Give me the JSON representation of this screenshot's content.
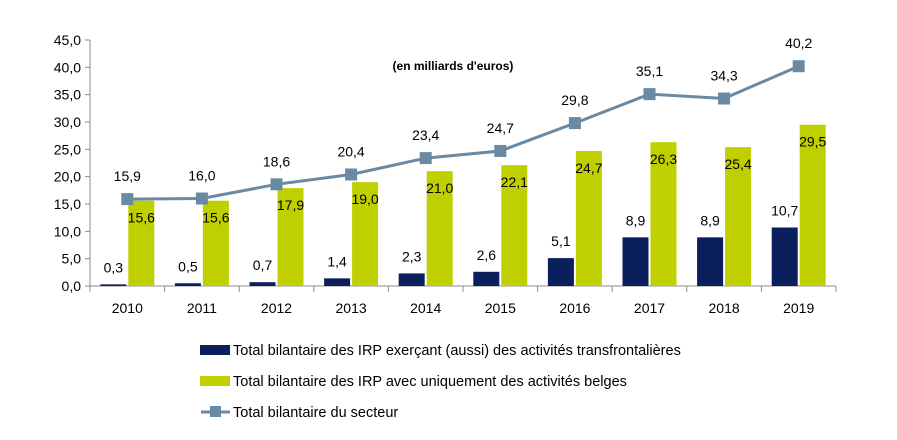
{
  "chart_data": {
    "type": "bar",
    "annotation": "(en milliards d'euros)",
    "categories": [
      "2010",
      "2011",
      "2012",
      "2013",
      "2014",
      "2015",
      "2016",
      "2017",
      "2018",
      "2019"
    ],
    "ylim": [
      0,
      45
    ],
    "yticks": [
      "0,0",
      "5,0",
      "10,0",
      "15,0",
      "20,0",
      "25,0",
      "30,0",
      "35,0",
      "40,0",
      "45,0"
    ],
    "grid": false,
    "legend_position": "bottom",
    "series": [
      {
        "name": "Total bilantaire des IRP exerçant (aussi) des activités transfrontalières",
        "kind": "bar",
        "color": "#0b1f5c",
        "values": [
          0.3,
          0.5,
          0.7,
          1.4,
          2.3,
          2.6,
          5.1,
          8.9,
          8.9,
          10.7
        ],
        "labels": [
          "0,3",
          "0,5",
          "0,7",
          "1,4",
          "2,3",
          "2,6",
          "5,1",
          "8,9",
          "8,9",
          "10,7"
        ]
      },
      {
        "name": "Total bilantaire des IRP avec uniquement des activités belges",
        "kind": "bar",
        "color": "#bfcf00",
        "values": [
          15.6,
          15.6,
          17.9,
          19.0,
          21.0,
          22.1,
          24.7,
          26.3,
          25.4,
          29.5
        ],
        "labels": [
          "15,6",
          "15,6",
          "17,9",
          "19,0",
          "21,0",
          "22,1",
          "24,7",
          "26,3",
          "25,4",
          "29,5"
        ]
      },
      {
        "name": "Total bilantaire du secteur",
        "kind": "line",
        "color": "#6a8aa4",
        "values": [
          15.9,
          16.0,
          18.6,
          20.4,
          23.4,
          24.7,
          29.8,
          35.1,
          34.3,
          40.2
        ],
        "labels": [
          "15,9",
          "16,0",
          "18,6",
          "20,4",
          "23,4",
          "24,7",
          "29,8",
          "35,1",
          "34,3",
          "40,2"
        ]
      }
    ]
  }
}
